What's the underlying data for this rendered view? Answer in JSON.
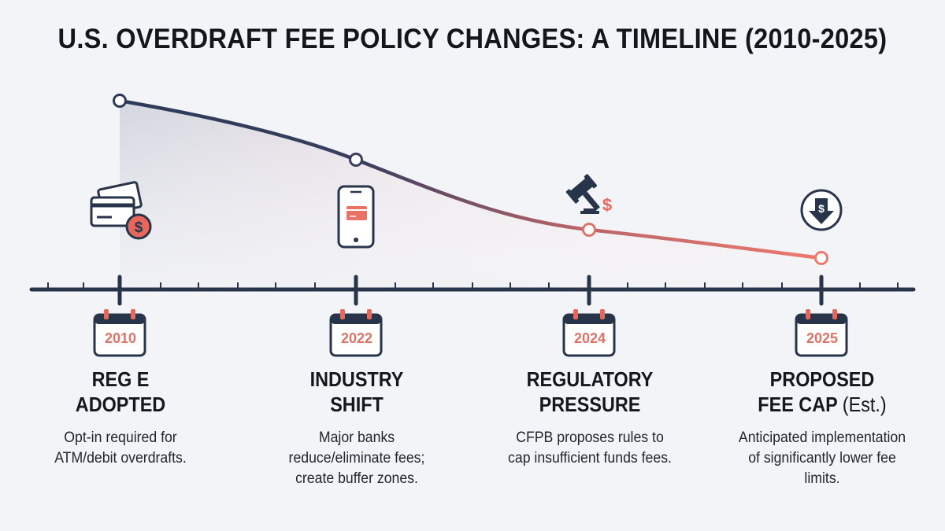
{
  "title": "U.S. OVERDRAFT FEE POLICY CHANGES: A TIMELINE (2010-2025)",
  "colors": {
    "axis": "#283449",
    "line_start": "#2c3a57",
    "line_end": "#e9776c",
    "accent": "#e07166",
    "text": "#15171d"
  },
  "events": [
    {
      "year": "2010",
      "title_lines": [
        "REG E",
        "ADOPTED"
      ],
      "title_suffix": "",
      "desc_lines": [
        "Opt-in required for",
        "ATM/debit overdrafts."
      ],
      "icon": "credit-card-dollar-icon"
    },
    {
      "year": "2022",
      "title_lines": [
        "INDUSTRY",
        "SHIFT"
      ],
      "title_suffix": "",
      "desc_lines": [
        "Major banks",
        "reduce/eliminate fees;",
        "create buffer zones."
      ],
      "icon": "smartphone-card-icon"
    },
    {
      "year": "2024",
      "title_lines": [
        "REGULATORY",
        "PRESSURE"
      ],
      "title_suffix": "",
      "desc_lines": [
        "CFPB proposes rules to",
        "cap insufficient funds fees."
      ],
      "icon": "gavel-dollar-icon"
    },
    {
      "year": "2025",
      "title_lines": [
        "PROPOSED",
        "FEE CAP"
      ],
      "title_suffix": "(Est.)",
      "desc_lines": [
        "Anticipated implementation",
        "of significantly lower fee",
        "limits."
      ],
      "icon": "dollar-down-arrow-icon"
    }
  ]
}
